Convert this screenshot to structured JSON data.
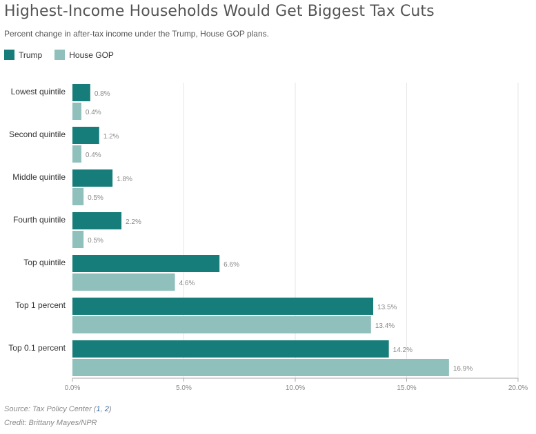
{
  "header": {
    "title": "Highest-Income Households Would Get Biggest Tax Cuts",
    "subtitle": "Percent change in after-tax income under the Trump, House GOP plans."
  },
  "colors": {
    "trump": "#167d7a",
    "house_gop": "#8fc0bc",
    "grid": "#e6e6e6",
    "axis": "#aaaaaa",
    "value_label": "#888888",
    "category_label": "#333333"
  },
  "chart_data": {
    "type": "bar",
    "orientation": "horizontal",
    "title": "Highest-Income Households Would Get Biggest Tax Cuts",
    "subtitle": "Percent change in after-tax income under the Trump, House GOP plans.",
    "categories": [
      "Lowest quintile",
      "Second quintile",
      "Middle quintile",
      "Fourth quintile",
      "Top quintile",
      "Top 1 percent",
      "Top 0.1 percent"
    ],
    "series": [
      {
        "name": "Trump",
        "values": [
          0.8,
          1.2,
          1.8,
          2.2,
          6.6,
          13.5,
          14.2
        ],
        "labels": [
          "0.8%",
          "1.2%",
          "1.8%",
          "2.2%",
          "6.6%",
          "13.5%",
          "14.2%"
        ]
      },
      {
        "name": "House GOP",
        "values": [
          0.4,
          0.4,
          0.5,
          0.5,
          4.6,
          13.4,
          16.9
        ],
        "labels": [
          "0.4%",
          "0.4%",
          "0.5%",
          "0.5%",
          "4.6%",
          "13.4%",
          "16.9%"
        ]
      }
    ],
    "xlim": [
      0,
      20
    ],
    "ticks": [
      0,
      5,
      10,
      15,
      20
    ],
    "tick_labels": [
      "0.0%",
      "5.0%",
      "10.0%",
      "15.0%",
      "20.0%"
    ],
    "grid": true,
    "legend_position": "top-left"
  },
  "footer": {
    "source_prefix": "Source: Tax Policy Center (",
    "source_link_1": "1",
    "source_sep": ", ",
    "source_link_2": "2",
    "source_suffix": ")",
    "credit": "Credit: Brittany Mayes/NPR"
  }
}
